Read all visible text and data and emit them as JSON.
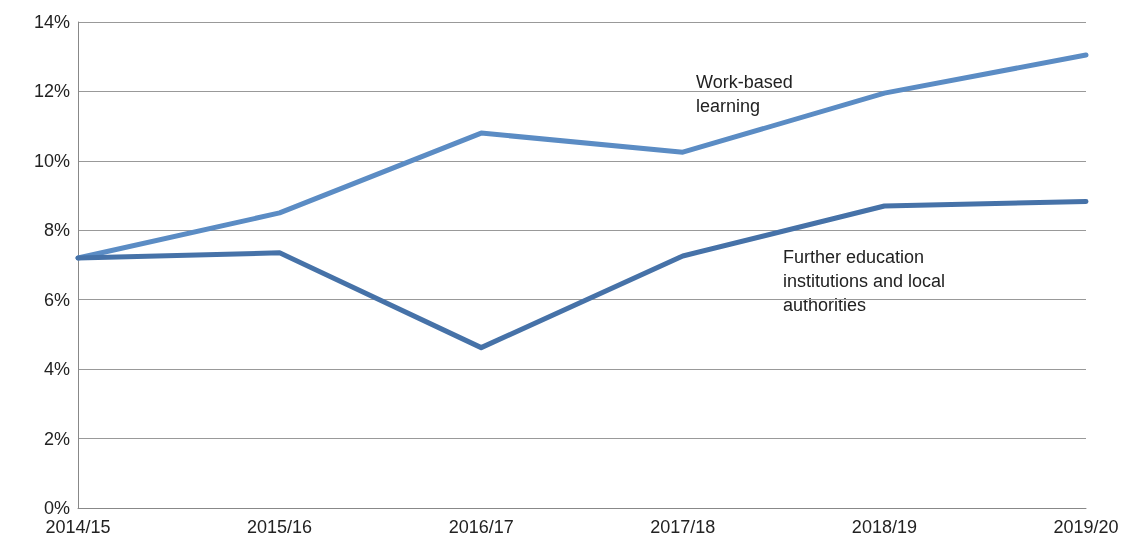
{
  "chart_data": {
    "type": "line",
    "categories": [
      "2014/15",
      "2015/16",
      "2016/17",
      "2017/18",
      "2018/19",
      "2019/20"
    ],
    "series": [
      {
        "name": "Work-based learning",
        "color": "#5b8cc4",
        "values": [
          7.2,
          8.5,
          10.8,
          10.25,
          11.95,
          13.05
        ]
      },
      {
        "name": "Further education institutions and local authorities",
        "color": "#4672a8",
        "values": [
          7.2,
          7.35,
          4.62,
          7.26,
          8.7,
          8.83
        ]
      }
    ],
    "ylim": [
      0,
      14
    ],
    "yticks": [
      {
        "value": 0,
        "label": "0%"
      },
      {
        "value": 2,
        "label": "2%"
      },
      {
        "value": 4,
        "label": "4%"
      },
      {
        "value": 6,
        "label": "6%"
      },
      {
        "value": 8,
        "label": "8%"
      },
      {
        "value": 10,
        "label": "10%"
      },
      {
        "value": 12,
        "label": "12%"
      },
      {
        "value": 14,
        "label": "14%"
      }
    ],
    "grid": "y",
    "legend": false,
    "marker": "none",
    "line_style": "solid"
  }
}
